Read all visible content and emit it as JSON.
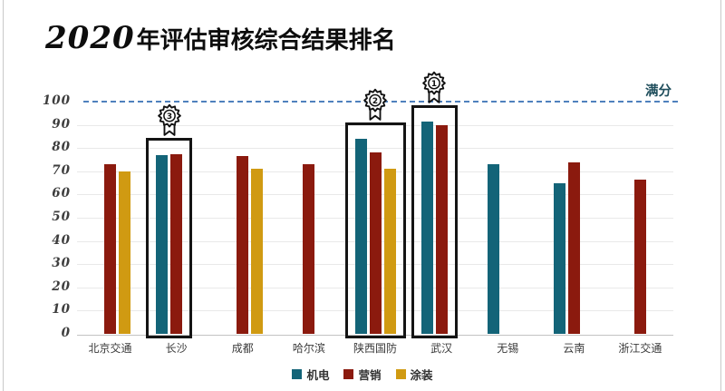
{
  "title": {
    "year": "2020",
    "rest": "年评估审核综合结果排名"
  },
  "chart_data": {
    "type": "bar",
    "title": "2020年评估审核综合结果排名",
    "categories": [
      "北京交通",
      "长沙",
      "成都",
      "哈尔滨",
      "陕西国防",
      "武汉",
      "无锡",
      "云南",
      "浙江交通"
    ],
    "series": [
      {
        "name": "机电",
        "color": "#136478",
        "values": [
          null,
          77,
          null,
          null,
          84,
          91.5,
          73,
          65,
          null
        ]
      },
      {
        "name": "营销",
        "color": "#8b1a0e",
        "values": [
          73,
          77.5,
          76.5,
          73,
          78,
          90,
          null,
          74,
          66.5
        ]
      },
      {
        "name": "涂装",
        "color": "#d09a12",
        "values": [
          70,
          null,
          71,
          null,
          71,
          null,
          null,
          null,
          null
        ]
      }
    ],
    "ylim": [
      0,
      100
    ],
    "yticks": [
      0,
      10,
      20,
      30,
      40,
      50,
      60,
      70,
      80,
      90,
      100
    ],
    "grid": true,
    "legend_position": "bottom",
    "reference_line": {
      "value": 100,
      "label": "满分",
      "style": "dashed",
      "color": "#4f81bd",
      "label_color": "#1f4e5c"
    },
    "highlights": [
      {
        "category": "武汉",
        "rank": 1
      },
      {
        "category": "陕西国防",
        "rank": 2
      },
      {
        "category": "长沙",
        "rank": 3
      }
    ]
  }
}
